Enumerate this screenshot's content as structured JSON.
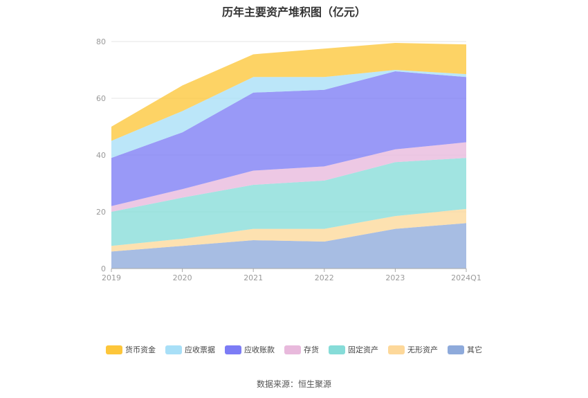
{
  "chart_data": {
    "type": "area",
    "stacked": true,
    "title": "历年主要资产堆积图（亿元）",
    "categories": [
      "2019",
      "2020",
      "2021",
      "2022",
      "2023",
      "2024Q1"
    ],
    "ylim": [
      0,
      80
    ],
    "yticks": [
      0,
      20,
      40,
      60,
      80
    ],
    "ytick_labels": [
      "0",
      "20",
      "40",
      "60",
      "80"
    ],
    "grid": true,
    "legend_position": "bottom",
    "series": [
      {
        "name": "其它",
        "color": "#8eaadb",
        "values": [
          6,
          8,
          10,
          9.5,
          14,
          16
        ]
      },
      {
        "name": "无形资产",
        "color": "#fdd89a",
        "values": [
          2,
          2.5,
          4,
          4.5,
          4.5,
          5
        ]
      },
      {
        "name": "固定资产",
        "color": "#86dcd8",
        "values": [
          12,
          14.5,
          15.5,
          17,
          19,
          18
        ]
      },
      {
        "name": "存货",
        "color": "#e8b9dc",
        "values": [
          2,
          3,
          5,
          5,
          4.5,
          5.5
        ]
      },
      {
        "name": "应收账款",
        "color": "#7c7cf5",
        "values": [
          17,
          20,
          27.5,
          27,
          27.5,
          23
        ]
      },
      {
        "name": "应收票据",
        "color": "#a8dff7",
        "values": [
          6,
          7.5,
          5.5,
          4.5,
          0.5,
          1
        ]
      },
      {
        "name": "货币资金",
        "color": "#fdc63a",
        "values": [
          5,
          9,
          8,
          10,
          9.5,
          10.5
        ]
      }
    ],
    "legend_order": [
      "货币资金",
      "应收票据",
      "应收账款",
      "存货",
      "固定资产",
      "无形资产",
      "其它"
    ]
  },
  "source_text": "数据来源：恒生聚源"
}
